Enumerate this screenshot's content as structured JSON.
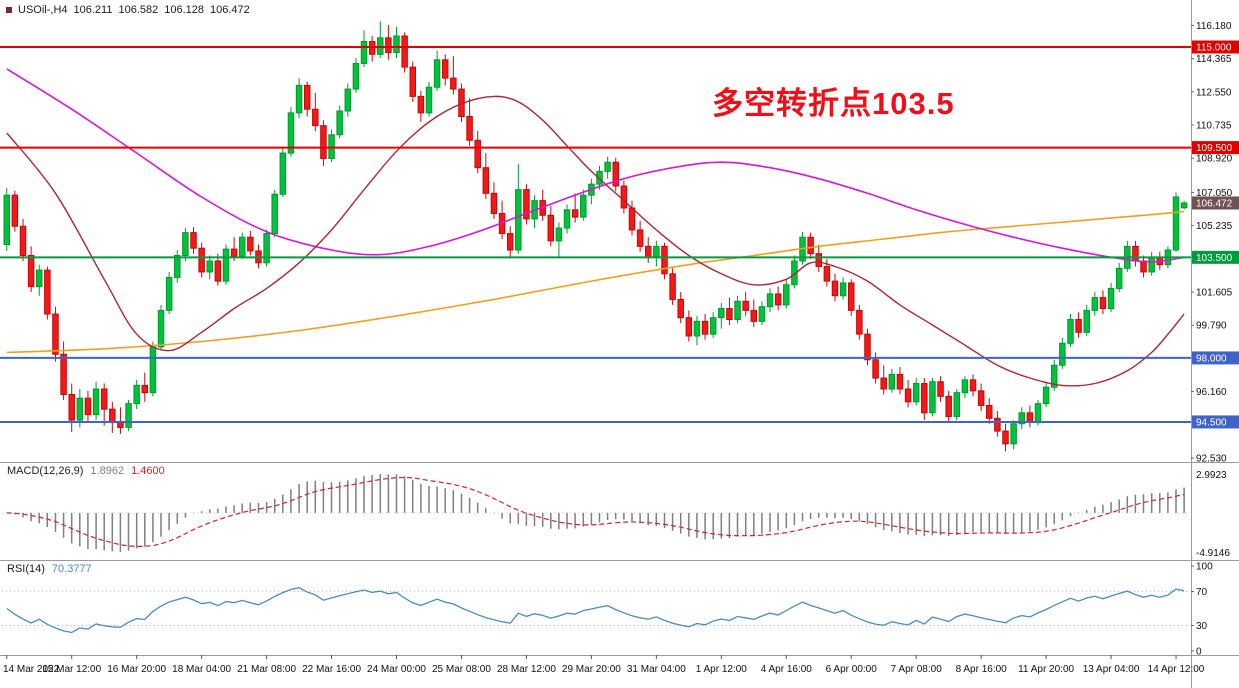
{
  "info": {
    "symbol_timeframe": "USOil-,H4",
    "open": "106.211",
    "high": "106.582",
    "low": "106.128",
    "close": "106.472"
  },
  "colors": {
    "candle_up": "#00c23c",
    "candle_up_border": "#009a2e",
    "candle_down": "#f51818",
    "candle_down_border": "#c40808",
    "current_price_badge": "#6f5353",
    "macd_histogram": "#7f7f7f",
    "macd_signal": "#d42424",
    "rsi_line": "#4a8ebc",
    "axis_text": "#111111"
  },
  "chart_data": {
    "type": "candlestick",
    "symbol": "USOil-",
    "timeframe": "H4",
    "ylim": [
      92.3,
      117.3
    ],
    "current_price_label": "106.472",
    "price_axis_ticks": [
      "116.180",
      "114.365",
      "112.550",
      "110.735",
      "108.920",
      "107.050",
      "105.235",
      "101.605",
      "99.790",
      "96.160",
      "92.530"
    ],
    "time_axis_labels": [
      "14 Mar 2022",
      "15 Mar 12:00",
      "16 Mar 20:00",
      "18 Mar 04:00",
      "21 Mar 08:00",
      "22 Mar 16:00",
      "24 Mar 00:00",
      "25 Mar 08:00",
      "28 Mar 12:00",
      "29 Mar 20:00",
      "31 Mar 04:00",
      "1 Apr 12:00",
      "4 Apr 16:00",
      "6 Apr 00:00",
      "7 Apr 08:00",
      "8 Apr 16:00",
      "11 Apr 20:00",
      "13 Apr 04:00",
      "14 Apr 12:00"
    ],
    "candles_per_time_label": 8,
    "horizontal_lines": [
      {
        "label": "115.000",
        "price": 115.0,
        "color": "#e00000"
      },
      {
        "label": "109.500",
        "price": 109.5,
        "color": "#e00000"
      },
      {
        "label": "103.500",
        "price": 103.5,
        "color": "#009b3c"
      },
      {
        "label": "98.000",
        "price": 98.0,
        "color": "#3f63c8"
      },
      {
        "label": "94.500",
        "price": 94.5,
        "color": "#3f63c8"
      }
    ],
    "annotations": [
      {
        "text": "多空转折点103.5",
        "color": "#f20d17"
      }
    ],
    "moving_averages": [
      {
        "name": "sma-slow-orange",
        "color": "#efa020",
        "width": 1.6,
        "points": [
          [
            0,
            98.3
          ],
          [
            12,
            98.5
          ],
          [
            24,
            98.9
          ],
          [
            36,
            99.5
          ],
          [
            48,
            100.3
          ],
          [
            60,
            101.2
          ],
          [
            72,
            102.2
          ],
          [
            84,
            103.1
          ],
          [
            92,
            103.6
          ],
          [
            100,
            104.1
          ],
          [
            108,
            104.5
          ],
          [
            116,
            104.9
          ],
          [
            124,
            105.2
          ],
          [
            132,
            105.5
          ],
          [
            140,
            105.8
          ],
          [
            145,
            106.0
          ]
        ]
      },
      {
        "name": "sma-mid-magenta",
        "color": "#d916d9",
        "width": 1.6,
        "points": [
          [
            0,
            113.8
          ],
          [
            8,
            111.6
          ],
          [
            16,
            109.2
          ],
          [
            24,
            106.8
          ],
          [
            32,
            104.9
          ],
          [
            40,
            103.9
          ],
          [
            46,
            103.65
          ],
          [
            52,
            104.1
          ],
          [
            58,
            104.9
          ],
          [
            64,
            105.9
          ],
          [
            70,
            106.9
          ],
          [
            76,
            107.8
          ],
          [
            82,
            108.4
          ],
          [
            88,
            108.7
          ],
          [
            94,
            108.4
          ],
          [
            100,
            107.8
          ],
          [
            106,
            107.0
          ],
          [
            112,
            106.1
          ],
          [
            118,
            105.3
          ],
          [
            124,
            104.6
          ],
          [
            130,
            104.0
          ],
          [
            136,
            103.5
          ],
          [
            141,
            103.25
          ],
          [
            145,
            103.5
          ]
        ]
      },
      {
        "name": "sma-fast-crimson",
        "color": "#b02535",
        "width": 1.4,
        "points": [
          [
            0,
            110.3
          ],
          [
            6,
            107.0
          ],
          [
            12,
            102.3
          ],
          [
            16,
            99.3
          ],
          [
            20,
            98.4
          ],
          [
            24,
            99.4
          ],
          [
            28,
            100.7
          ],
          [
            32,
            101.8
          ],
          [
            36,
            103.2
          ],
          [
            40,
            105.0
          ],
          [
            44,
            107.2
          ],
          [
            48,
            109.3
          ],
          [
            52,
            110.9
          ],
          [
            56,
            111.9
          ],
          [
            60,
            112.3
          ],
          [
            63,
            112.0
          ],
          [
            66,
            111.0
          ],
          [
            69,
            109.6
          ],
          [
            72,
            108.2
          ],
          [
            76,
            106.6
          ],
          [
            80,
            105.0
          ],
          [
            84,
            103.6
          ],
          [
            88,
            102.6
          ],
          [
            92,
            102.0
          ],
          [
            96,
            102.3
          ],
          [
            99,
            103.2
          ],
          [
            102,
            103.0
          ],
          [
            106,
            102.2
          ],
          [
            110,
            100.9
          ],
          [
            114,
            99.8
          ],
          [
            118,
            98.7
          ],
          [
            122,
            97.6
          ],
          [
            126,
            96.9
          ],
          [
            130,
            96.5
          ],
          [
            134,
            96.6
          ],
          [
            138,
            97.3
          ],
          [
            141,
            98.3
          ],
          [
            143,
            99.3
          ],
          [
            145,
            100.4
          ]
        ]
      }
    ],
    "indicators": {
      "macd": {
        "name_label": "MACD(12,26,9)",
        "fast": 12,
        "slow": 26,
        "signal": 9,
        "value_main": "1.8962",
        "value_signal": "1.4600",
        "axis_max_label": "2.9923",
        "axis_min_label": "-4.9146"
      },
      "rsi": {
        "name_label": "RSI(14)",
        "period": 14,
        "value": "70.3777",
        "axis_labels": [
          "100",
          "70",
          "30",
          "0"
        ],
        "levels": [
          70,
          30
        ]
      }
    },
    "ohlc": [
      [
        104.2,
        107.3,
        103.85,
        106.9
      ],
      [
        106.9,
        107.15,
        104.9,
        105.2
      ],
      [
        105.2,
        105.6,
        103.3,
        103.6
      ],
      [
        103.6,
        104.1,
        101.6,
        101.9
      ],
      [
        101.9,
        103.1,
        101.4,
        102.8
      ],
      [
        102.8,
        103.0,
        100.1,
        100.4
      ],
      [
        100.4,
        100.8,
        97.8,
        98.2
      ],
      [
        98.2,
        98.9,
        95.7,
        96.0
      ],
      [
        96.0,
        96.6,
        93.95,
        94.6
      ],
      [
        94.6,
        96.3,
        94.2,
        95.8
      ],
      [
        95.8,
        96.2,
        94.5,
        94.9
      ],
      [
        94.9,
        96.7,
        94.6,
        96.3
      ],
      [
        96.3,
        96.6,
        94.3,
        95.2
      ],
      [
        95.2,
        95.6,
        93.9,
        94.5
      ],
      [
        94.5,
        95.3,
        93.85,
        94.2
      ],
      [
        94.2,
        95.7,
        94.0,
        95.5
      ],
      [
        95.5,
        96.8,
        95.2,
        96.5
      ],
      [
        96.5,
        97.2,
        95.6,
        96.1
      ],
      [
        96.1,
        98.9,
        95.9,
        98.6
      ],
      [
        98.6,
        100.9,
        98.4,
        100.6
      ],
      [
        100.6,
        102.7,
        100.4,
        102.4
      ],
      [
        102.4,
        103.9,
        102.1,
        103.6
      ],
      [
        103.6,
        105.1,
        103.3,
        104.85
      ],
      [
        104.85,
        105.15,
        103.7,
        104.0
      ],
      [
        104.0,
        104.3,
        102.4,
        102.7
      ],
      [
        102.7,
        103.6,
        102.3,
        103.3
      ],
      [
        103.3,
        103.7,
        101.95,
        102.2
      ],
      [
        102.2,
        104.2,
        102.0,
        103.95
      ],
      [
        103.95,
        104.6,
        103.3,
        103.55
      ],
      [
        103.55,
        104.85,
        103.4,
        104.6
      ],
      [
        104.6,
        104.95,
        103.6,
        103.85
      ],
      [
        103.85,
        104.2,
        102.9,
        103.2
      ],
      [
        103.2,
        105.0,
        103.0,
        104.8
      ],
      [
        104.8,
        107.2,
        104.6,
        106.95
      ],
      [
        106.95,
        109.5,
        106.8,
        109.2
      ],
      [
        109.2,
        111.7,
        109.0,
        111.4
      ],
      [
        111.4,
        113.3,
        111.1,
        112.9
      ],
      [
        112.9,
        113.1,
        111.2,
        111.6
      ],
      [
        111.6,
        112.5,
        110.4,
        110.7
      ],
      [
        110.7,
        111.0,
        108.5,
        108.9
      ],
      [
        108.9,
        110.5,
        108.7,
        110.2
      ],
      [
        110.2,
        111.8,
        110.0,
        111.5
      ],
      [
        111.5,
        113.0,
        111.2,
        112.7
      ],
      [
        112.7,
        114.4,
        112.5,
        114.1
      ],
      [
        114.1,
        115.9,
        113.9,
        115.3
      ],
      [
        115.3,
        115.6,
        114.2,
        114.6
      ],
      [
        114.6,
        116.4,
        114.4,
        115.5
      ],
      [
        115.5,
        116.2,
        114.3,
        114.7
      ],
      [
        114.7,
        116.1,
        114.4,
        115.6
      ],
      [
        115.6,
        115.8,
        113.6,
        113.9
      ],
      [
        113.9,
        114.2,
        112.0,
        112.3
      ],
      [
        112.3,
        112.6,
        110.9,
        111.4
      ],
      [
        111.4,
        113.1,
        111.2,
        112.8
      ],
      [
        112.8,
        114.8,
        112.6,
        114.3
      ],
      [
        114.3,
        114.6,
        112.9,
        113.3
      ],
      [
        113.3,
        114.5,
        112.4,
        112.7
      ],
      [
        112.7,
        113.0,
        110.9,
        111.2
      ],
      [
        111.2,
        112.2,
        109.6,
        109.9
      ],
      [
        109.9,
        110.4,
        108.1,
        108.4
      ],
      [
        108.4,
        109.2,
        106.7,
        107.0
      ],
      [
        107.0,
        107.6,
        105.6,
        105.9
      ],
      [
        105.9,
        106.6,
        104.5,
        104.8
      ],
      [
        104.8,
        105.2,
        103.45,
        103.9
      ],
      [
        103.9,
        108.6,
        103.7,
        107.2
      ],
      [
        107.2,
        107.5,
        105.3,
        105.6
      ],
      [
        105.6,
        106.9,
        105.1,
        106.6
      ],
      [
        106.6,
        107.2,
        105.5,
        105.8
      ],
      [
        105.8,
        106.3,
        104.1,
        104.4
      ],
      [
        104.4,
        105.4,
        103.5,
        105.1
      ],
      [
        105.1,
        106.4,
        104.8,
        106.1
      ],
      [
        106.1,
        107.0,
        105.4,
        105.7
      ],
      [
        105.7,
        107.2,
        105.5,
        106.9
      ],
      [
        106.9,
        107.8,
        106.4,
        107.5
      ],
      [
        107.5,
        108.5,
        107.2,
        108.2
      ],
      [
        108.2,
        109.0,
        107.8,
        108.7
      ],
      [
        108.7,
        108.95,
        107.1,
        107.4
      ],
      [
        107.4,
        107.7,
        105.9,
        106.2
      ],
      [
        106.2,
        106.6,
        104.7,
        105.0
      ],
      [
        105.0,
        105.5,
        103.8,
        104.1
      ],
      [
        104.1,
        104.6,
        103.2,
        103.5
      ],
      [
        103.5,
        104.4,
        103.0,
        104.1
      ],
      [
        104.1,
        104.3,
        102.3,
        102.6
      ],
      [
        102.6,
        102.9,
        100.9,
        101.2
      ],
      [
        101.2,
        101.6,
        99.9,
        100.2
      ],
      [
        100.2,
        100.6,
        98.9,
        99.2
      ],
      [
        99.2,
        100.3,
        98.7,
        100.0
      ],
      [
        100.0,
        100.4,
        99.0,
        99.3
      ],
      [
        99.3,
        100.5,
        99.1,
        100.2
      ],
      [
        100.2,
        101.0,
        99.6,
        100.7
      ],
      [
        100.7,
        101.3,
        99.8,
        100.1
      ],
      [
        100.1,
        101.4,
        99.9,
        101.1
      ],
      [
        101.1,
        101.6,
        100.3,
        100.6
      ],
      [
        100.6,
        101.2,
        99.7,
        100.0
      ],
      [
        100.0,
        101.1,
        99.8,
        100.8
      ],
      [
        100.8,
        101.8,
        100.5,
        101.5
      ],
      [
        101.5,
        101.9,
        100.6,
        100.9
      ],
      [
        100.9,
        102.3,
        100.7,
        102.0
      ],
      [
        102.0,
        103.6,
        101.8,
        103.3
      ],
      [
        103.3,
        104.9,
        103.1,
        104.6
      ],
      [
        104.6,
        104.85,
        103.4,
        103.7
      ],
      [
        103.7,
        104.2,
        102.7,
        103.0
      ],
      [
        103.0,
        103.4,
        101.9,
        102.2
      ],
      [
        102.2,
        102.6,
        101.1,
        101.4
      ],
      [
        101.4,
        102.4,
        101.2,
        102.1
      ],
      [
        102.1,
        102.3,
        100.3,
        100.6
      ],
      [
        100.6,
        100.9,
        99.0,
        99.3
      ],
      [
        99.3,
        99.6,
        97.6,
        97.9
      ],
      [
        97.9,
        98.3,
        96.6,
        96.9
      ],
      [
        96.9,
        97.6,
        96.0,
        96.3
      ],
      [
        96.3,
        97.4,
        96.1,
        97.1
      ],
      [
        97.1,
        97.5,
        96.0,
        96.3
      ],
      [
        96.3,
        96.8,
        95.3,
        95.6
      ],
      [
        95.6,
        96.9,
        95.4,
        96.6
      ],
      [
        96.6,
        96.9,
        94.6,
        95.0
      ],
      [
        95.0,
        96.9,
        94.8,
        96.7
      ],
      [
        96.7,
        97.0,
        95.6,
        95.9
      ],
      [
        95.9,
        96.2,
        94.5,
        94.8
      ],
      [
        94.8,
        96.3,
        94.6,
        96.1
      ],
      [
        96.1,
        97.0,
        95.8,
        96.8
      ],
      [
        96.8,
        97.1,
        95.9,
        96.2
      ],
      [
        96.2,
        96.6,
        95.1,
        95.4
      ],
      [
        95.4,
        95.8,
        94.4,
        94.7
      ],
      [
        94.7,
        95.1,
        93.7,
        94.0
      ],
      [
        94.0,
        94.4,
        92.9,
        93.3
      ],
      [
        93.3,
        94.6,
        93.0,
        94.4
      ],
      [
        94.4,
        95.3,
        94.1,
        95.0
      ],
      [
        95.0,
        95.4,
        94.2,
        94.5
      ],
      [
        94.5,
        95.7,
        94.3,
        95.5
      ],
      [
        95.5,
        96.7,
        95.3,
        96.4
      ],
      [
        96.4,
        97.9,
        96.2,
        97.6
      ],
      [
        97.6,
        99.1,
        97.4,
        98.8
      ],
      [
        98.8,
        100.4,
        98.6,
        100.1
      ],
      [
        100.1,
        100.5,
        99.1,
        99.4
      ],
      [
        99.4,
        100.9,
        99.2,
        100.6
      ],
      [
        100.6,
        101.6,
        100.3,
        101.3
      ],
      [
        101.3,
        101.7,
        100.4,
        100.7
      ],
      [
        100.7,
        102.1,
        100.5,
        101.8
      ],
      [
        101.8,
        103.2,
        101.6,
        102.9
      ],
      [
        102.9,
        104.4,
        102.7,
        104.1
      ],
      [
        104.1,
        104.4,
        103.0,
        103.3
      ],
      [
        103.3,
        103.6,
        102.4,
        102.7
      ],
      [
        102.7,
        103.8,
        102.5,
        103.5
      ],
      [
        103.5,
        103.8,
        102.8,
        103.1
      ],
      [
        103.1,
        104.1,
        102.9,
        103.9
      ],
      [
        103.9,
        107.05,
        103.8,
        106.8
      ],
      [
        106.21,
        106.58,
        106.13,
        106.47
      ]
    ]
  }
}
